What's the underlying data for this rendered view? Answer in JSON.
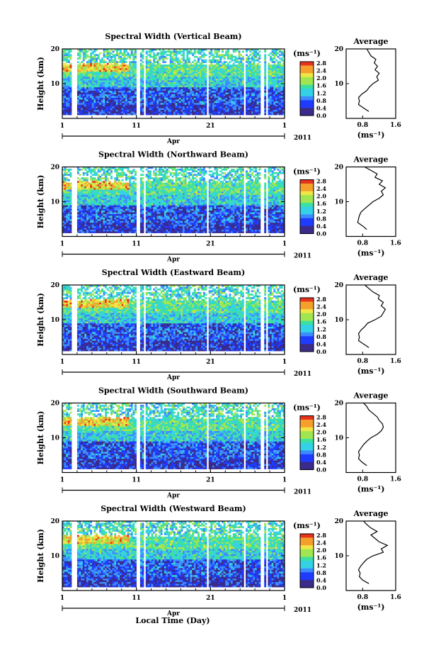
{
  "figure": {
    "xlabel": "Local Time (Day)",
    "month_label": "Apr",
    "year_label": "2011",
    "x_ticks": [
      "1",
      "11",
      "21",
      "1"
    ],
    "height_label": "Height (km)",
    "height_ticks": [
      "20",
      "10"
    ],
    "colorbar_unit": "(ms⁻¹)",
    "colorbar_ticks": [
      "2.8",
      "2.4",
      "2.0",
      "1.6",
      "1.2",
      "0.8",
      "0.4",
      "0.0"
    ],
    "average_title": "Average",
    "average_unit": "(ms⁻¹)",
    "average_ticks": [
      "0.8",
      "1.6"
    ],
    "colors": {
      "scale": [
        "#3a2a8a",
        "#1e3cff",
        "#3c8cff",
        "#34d2e6",
        "#3ce0a0",
        "#a0e650",
        "#f0e646",
        "#f5a02d",
        "#e6321e"
      ]
    }
  },
  "chart_data": [
    {
      "type": "heatmap",
      "title": "Spectral Width (Vertical Beam)",
      "x_range_days": [
        1,
        31
      ],
      "y_range_km": [
        0,
        20
      ],
      "color_range": [
        0.0,
        2.8
      ],
      "average_profile": {
        "x_ms": [
          0.95,
          0.82,
          0.7,
          0.72,
          0.7,
          0.78,
          0.9,
          0.96,
          1.05,
          1.18,
          1.14,
          1.2,
          1.1,
          1.16,
          1.08,
          1.12,
          1.0,
          0.95,
          0.9
        ],
        "height_km": [
          2,
          3,
          4,
          5,
          6,
          7,
          8,
          9,
          10,
          11,
          12,
          13,
          14,
          15,
          16,
          17,
          18,
          19,
          20
        ],
        "x_range": [
          0.4,
          1.6
        ]
      }
    },
    {
      "type": "heatmap",
      "title": "Spectral Width (Northward Beam)",
      "x_range_days": [
        1,
        31
      ],
      "y_range_km": [
        0,
        20
      ],
      "color_range": [
        0.0,
        2.8
      ],
      "average_profile": {
        "x_ms": [
          0.9,
          0.8,
          0.68,
          0.7,
          0.72,
          0.76,
          0.85,
          0.95,
          1.05,
          1.2,
          1.3,
          1.25,
          1.35,
          1.2,
          1.28,
          1.1,
          1.15,
          1.0,
          0.85
        ],
        "height_km": [
          2,
          3,
          4,
          5,
          6,
          7,
          8,
          9,
          10,
          11,
          12,
          13,
          14,
          15,
          16,
          17,
          18,
          19,
          20
        ],
        "x_range": [
          0.4,
          1.6
        ]
      }
    },
    {
      "type": "heatmap",
      "title": "Spectral Width (Eastward Beam)",
      "x_range_days": [
        1,
        31
      ],
      "y_range_km": [
        0,
        20
      ],
      "color_range": [
        0.0,
        2.8
      ],
      "average_profile": {
        "x_ms": [
          0.95,
          0.82,
          0.7,
          0.72,
          0.7,
          0.76,
          0.85,
          0.92,
          1.1,
          1.25,
          1.3,
          1.35,
          1.25,
          1.3,
          1.18,
          1.2,
          1.05,
          0.95,
          0.85
        ],
        "height_km": [
          2,
          3,
          4,
          5,
          6,
          7,
          8,
          9,
          10,
          11,
          12,
          13,
          14,
          15,
          16,
          17,
          18,
          19,
          20
        ],
        "x_range": [
          0.4,
          1.6
        ]
      }
    },
    {
      "type": "heatmap",
      "title": "Spectral Width (Southward Beam)",
      "x_range_days": [
        1,
        31
      ],
      "y_range_km": [
        0,
        20
      ],
      "color_range": [
        0.0,
        2.8
      ],
      "average_profile": {
        "x_ms": [
          0.9,
          0.78,
          0.7,
          0.72,
          0.7,
          0.76,
          0.82,
          0.9,
          1.0,
          1.15,
          1.25,
          1.3,
          1.28,
          1.2,
          1.15,
          1.05,
          0.95,
          0.9,
          0.82
        ],
        "height_km": [
          2,
          3,
          4,
          5,
          6,
          7,
          8,
          9,
          10,
          11,
          12,
          13,
          14,
          15,
          16,
          17,
          18,
          19,
          20
        ],
        "x_range": [
          0.4,
          1.6
        ]
      }
    },
    {
      "type": "heatmap",
      "title": "Spectral Width (Westward Beam)",
      "x_range_days": [
        1,
        31
      ],
      "y_range_km": [
        0,
        20
      ],
      "color_range": [
        0.0,
        2.8
      ],
      "average_profile": {
        "x_ms": [
          0.95,
          0.8,
          0.72,
          0.74,
          0.7,
          0.75,
          0.82,
          0.9,
          1.05,
          1.3,
          1.25,
          1.4,
          1.2,
          1.1,
          1.0,
          1.15,
          1.0,
          0.9,
          0.82
        ],
        "height_km": [
          2,
          3,
          4,
          5,
          6,
          7,
          8,
          9,
          10,
          11,
          12,
          13,
          14,
          15,
          16,
          17,
          18,
          19,
          20
        ],
        "x_range": [
          0.4,
          1.6
        ]
      }
    }
  ]
}
